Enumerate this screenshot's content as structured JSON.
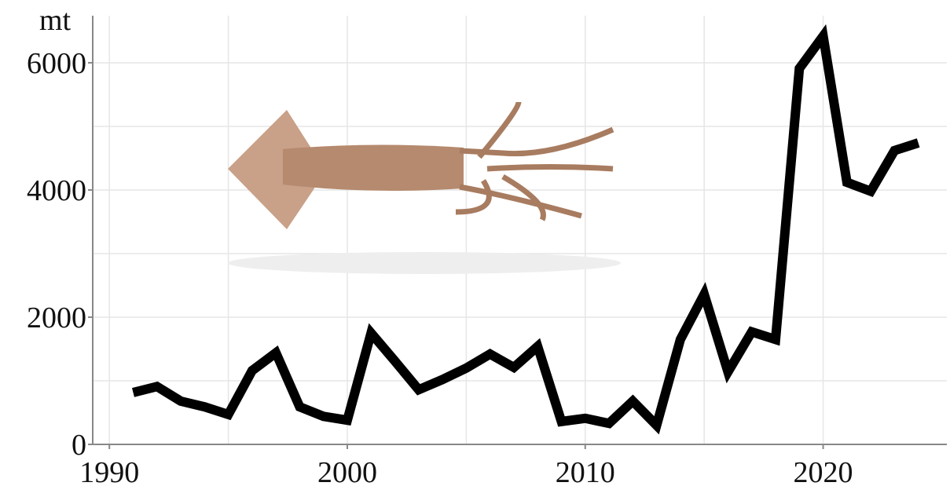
{
  "chart_data": {
    "type": "line",
    "y_label": "mt",
    "x": [
      1991,
      1992,
      1993,
      1994,
      1995,
      1996,
      1997,
      1998,
      1999,
      2000,
      2001,
      2002,
      2003,
      2004,
      2005,
      2006,
      2007,
      2008,
      2009,
      2010,
      2011,
      2012,
      2013,
      2014,
      2015,
      2016,
      2017,
      2018,
      2019,
      2020,
      2021,
      2022,
      2023,
      2024
    ],
    "series": [
      {
        "color": "#000000",
        "values": [
          815,
          910,
          680,
          590,
          470,
          1160,
          1440,
          590,
          440,
          380,
          1750,
          1310,
          860,
          1020,
          1200,
          1420,
          1210,
          1540,
          360,
          410,
          330,
          680,
          300,
          1650,
          2360,
          1140,
          1770,
          1650,
          5910,
          6420,
          4120,
          3980,
          4620,
          4740
        ]
      }
    ],
    "xlim": [
      1989.3,
      2025.2
    ],
    "xticks": [
      1990,
      2000,
      2010,
      2020
    ],
    "minor_xticks": [
      1995,
      2005,
      2015
    ],
    "ylim": [
      0,
      6740
    ],
    "yticks": [
      0,
      2000,
      4000,
      6000
    ],
    "minor_yticks": [
      1000,
      3000,
      5000
    ],
    "grid": true
  }
}
